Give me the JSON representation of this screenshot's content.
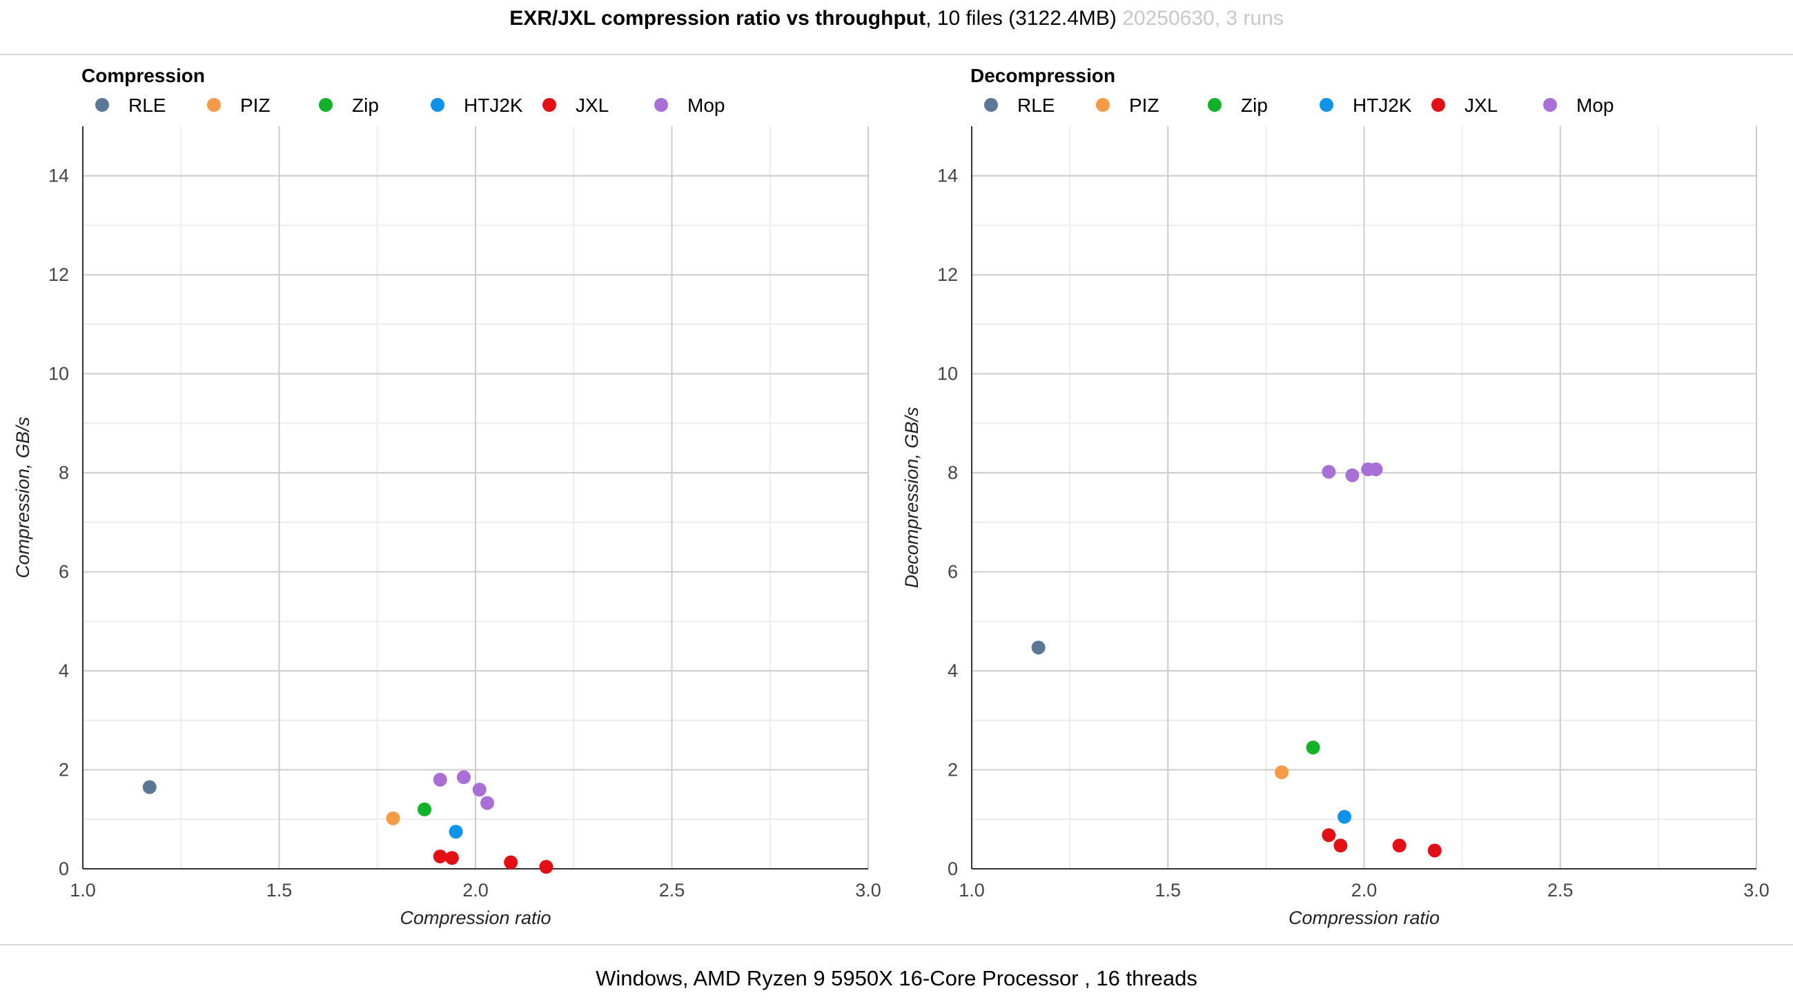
{
  "header": {
    "title_bold": "EXR/JXL compression ratio vs throughput",
    "title_rest": ", 10 files (3122.4MB) ",
    "title_gray": "20250630, 3 runs"
  },
  "footer": "Windows, AMD Ryzen 9 5950X 16-Core Processor , 16 threads",
  "colors": {
    "RLE": "#5b7796",
    "PIZ": "#f59a45",
    "Zip": "#12b228",
    "HTJ2K": "#0f93e8",
    "JXL": "#e20f14",
    "Mop": "#a96fd6"
  },
  "chart_data": [
    {
      "type": "scatter",
      "title": "Compression",
      "xlabel": "Compression ratio",
      "ylabel": "Compression, GB/s",
      "xlim": [
        1.0,
        3.0
      ],
      "ylim": [
        0,
        15
      ],
      "xticks": [
        "1.0",
        "1.5",
        "2.0",
        "2.5",
        "3.0"
      ],
      "yticks": [
        "0",
        "2",
        "4",
        "6",
        "8",
        "10",
        "12",
        "14"
      ],
      "grid": true,
      "legend": "top-left",
      "series": [
        {
          "name": "RLE",
          "points": [
            [
              1.17,
              1.65
            ]
          ]
        },
        {
          "name": "PIZ",
          "points": [
            [
              1.79,
              1.02
            ]
          ]
        },
        {
          "name": "Zip",
          "points": [
            [
              1.87,
              1.2
            ]
          ]
        },
        {
          "name": "HTJ2K",
          "points": [
            [
              1.95,
              0.75
            ]
          ]
        },
        {
          "name": "JXL",
          "points": [
            [
              1.91,
              0.25
            ],
            [
              1.94,
              0.22
            ],
            [
              2.09,
              0.13
            ],
            [
              2.18,
              0.04
            ]
          ]
        },
        {
          "name": "Mop",
          "points": [
            [
              1.91,
              1.8
            ],
            [
              1.97,
              1.85
            ],
            [
              2.01,
              1.6
            ],
            [
              2.03,
              1.33
            ]
          ]
        }
      ]
    },
    {
      "type": "scatter",
      "title": "Decompression",
      "xlabel": "Compression ratio",
      "ylabel": "Decompression, GB/s",
      "xlim": [
        1.0,
        3.0
      ],
      "ylim": [
        0,
        15
      ],
      "xticks": [
        "1.0",
        "1.5",
        "2.0",
        "2.5",
        "3.0"
      ],
      "yticks": [
        "0",
        "2",
        "4",
        "6",
        "8",
        "10",
        "12",
        "14"
      ],
      "grid": true,
      "legend": "top-left",
      "series": [
        {
          "name": "RLE",
          "points": [
            [
              1.17,
              4.47
            ]
          ]
        },
        {
          "name": "PIZ",
          "points": [
            [
              1.79,
              1.95
            ]
          ]
        },
        {
          "name": "Zip",
          "points": [
            [
              1.87,
              2.45
            ]
          ]
        },
        {
          "name": "HTJ2K",
          "points": [
            [
              1.95,
              1.05
            ]
          ]
        },
        {
          "name": "JXL",
          "points": [
            [
              1.91,
              0.68
            ],
            [
              1.94,
              0.47
            ],
            [
              2.09,
              0.47
            ],
            [
              2.18,
              0.37
            ]
          ]
        },
        {
          "name": "Mop",
          "points": [
            [
              1.91,
              8.02
            ],
            [
              1.97,
              7.95
            ],
            [
              2.01,
              8.07
            ],
            [
              2.03,
              8.07
            ]
          ]
        }
      ]
    }
  ]
}
